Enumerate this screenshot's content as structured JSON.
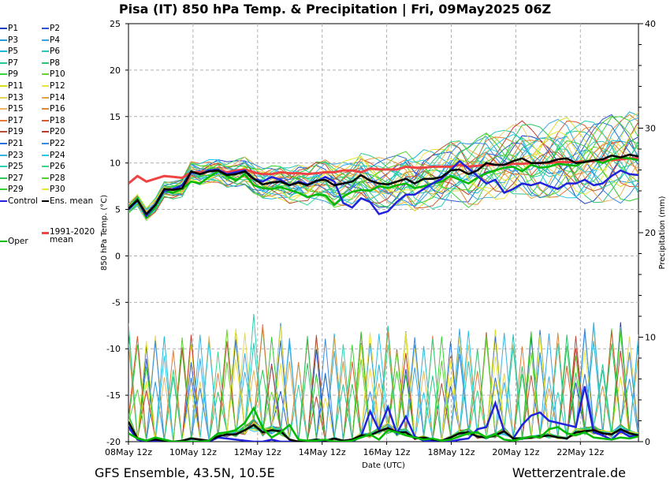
{
  "title": "Pisa  (IT)  850 hPa Temp. & Precipitation | Fri, 09May2025 06Z",
  "footer": {
    "left": "GFS Ensemble, 43.5N, 10.5E",
    "right": "Wetterzentrale.de"
  },
  "chart_data": {
    "type": "line",
    "xlabel": "Date (UTC)",
    "ylabel_left": "850 hPa Temp. (°C)",
    "ylabel_right": "Precipitation (mm)",
    "ylim_left": [
      -20,
      25
    ],
    "ylim_right": [
      0,
      40
    ],
    "yticks_left": [
      -20,
      -15,
      -10,
      -5,
      0,
      5,
      10,
      15,
      20,
      25
    ],
    "yticks_right": [
      0,
      10,
      20,
      30,
      40
    ],
    "x_ticks": [
      "08May 12z",
      "10May 12z",
      "12May 12z",
      "14May 12z",
      "16May 12z",
      "18May 12z",
      "20May 12z",
      "22May 12z"
    ],
    "x_range_days": [
      "08May 12z",
      "24May 12z"
    ],
    "grid": true,
    "legend_position": "left, outside",
    "legend": [
      {
        "name": "P1",
        "color": "#1f3fbf"
      },
      {
        "name": "P2",
        "color": "#2b55d6"
      },
      {
        "name": "P3",
        "color": "#2a9ad6"
      },
      {
        "name": "P4",
        "color": "#33a7ee"
      },
      {
        "name": "P5",
        "color": "#20b8d8"
      },
      {
        "name": "P6",
        "color": "#22c7b8"
      },
      {
        "name": "P7",
        "color": "#26c88f"
      },
      {
        "name": "P8",
        "color": "#2fc46d"
      },
      {
        "name": "P9",
        "color": "#3ad33a"
      },
      {
        "name": "P10",
        "color": "#66d62a"
      },
      {
        "name": "P11",
        "color": "#d9e024"
      },
      {
        "name": "P12",
        "color": "#ece23a"
      },
      {
        "name": "P13",
        "color": "#e6d45a"
      },
      {
        "name": "P14",
        "color": "#e7a33a"
      },
      {
        "name": "P15",
        "color": "#eab55c"
      },
      {
        "name": "P16",
        "color": "#d98a3a"
      },
      {
        "name": "P17",
        "color": "#e67a3a"
      },
      {
        "name": "P18",
        "color": "#d9582c"
      },
      {
        "name": "P19",
        "color": "#b84c3a"
      },
      {
        "name": "P20",
        "color": "#c23a2c"
      },
      {
        "name": "P21",
        "color": "#2c6fd6"
      },
      {
        "name": "P22",
        "color": "#3a8ae6"
      },
      {
        "name": "P23",
        "color": "#3ab0e0"
      },
      {
        "name": "P24",
        "color": "#20c8ea"
      },
      {
        "name": "P25",
        "color": "#2ad0b0"
      },
      {
        "name": "P26",
        "color": "#35d88a"
      },
      {
        "name": "P27",
        "color": "#2ec85a"
      },
      {
        "name": "P28",
        "color": "#5ad030"
      },
      {
        "name": "P29",
        "color": "#33cc33"
      },
      {
        "name": "P30",
        "color": "#e8e830"
      },
      {
        "name": "Control",
        "color": "#2222dd"
      },
      {
        "name": "Ens. mean",
        "color": "#000000"
      },
      {
        "name": "1991-2020 mean",
        "color": "#ee4444"
      },
      {
        "name": "Oper",
        "color": "#00bb00"
      }
    ],
    "highlighted_series": [
      {
        "name": "Control",
        "temp": [
          5,
          6,
          4.3,
          5.5,
          7,
          7.2,
          7.6,
          9,
          8.8,
          9.2,
          9.3,
          8.8,
          9,
          9.2,
          8.3,
          8,
          8.5,
          8.2,
          7.6,
          8,
          7.7,
          8,
          8.5,
          8,
          5.7,
          5.2,
          6.2,
          5.8,
          4.5,
          4.8,
          5.8,
          6.6,
          6.6,
          7.2,
          7.8,
          8.3,
          9.2,
          10.2,
          9.4,
          8.6,
          7.8,
          8.2,
          6.8,
          7.2,
          7.8,
          7.6,
          7.9,
          7.5,
          7.2,
          7.8,
          7.8,
          8.2,
          7.6,
          7.8,
          8.6,
          9.2,
          8.8,
          8.7
        ]
      },
      {
        "name": "Ens. mean",
        "temp": [
          5.1,
          6,
          4.5,
          5.5,
          7.2,
          7.1,
          7.3,
          9.1,
          8.8,
          9.1,
          9.2,
          8.7,
          8.8,
          9.1,
          8.3,
          7.7,
          7.9,
          8,
          7.6,
          7.9,
          7.6,
          8.1,
          8.2,
          7.6,
          7.8,
          8,
          8.7,
          8.1,
          7.8,
          7.7,
          8,
          8.3,
          7.8,
          8.3,
          8.3,
          8.5,
          9.2,
          9.3,
          8.8,
          9.2,
          10,
          9.8,
          9.8,
          10.2,
          10.5,
          10,
          10,
          10.1,
          10.4,
          10.5,
          10,
          10.1,
          10.3,
          10.4,
          10.8,
          10.6,
          10.9,
          10.7
        ]
      },
      {
        "name": "1991-2020 mean",
        "temp": [
          7.8,
          8.6,
          8,
          8.3,
          8.6,
          8.5,
          8.4,
          9,
          9,
          9.1,
          9.2,
          9,
          9.2,
          9.3,
          9,
          8.8,
          8.8,
          9,
          8.9,
          8.9,
          8.8,
          8.9,
          9,
          9,
          9.2,
          9.2,
          9,
          9.4,
          9.3,
          9.3,
          9.3,
          9.6,
          9.5,
          9.5,
          9.6,
          9.6,
          9.6,
          9.8,
          9.6,
          9.7,
          9.8,
          9.8,
          9.8,
          9.9,
          9.9,
          10,
          10,
          10,
          10.1,
          10.1,
          10.1,
          10.2,
          10.2,
          10.3,
          10.3,
          10.4,
          10.5,
          10.5
        ]
      },
      {
        "name": "Oper",
        "temp": [
          5,
          6.2,
          4.1,
          5.3,
          7,
          6.8,
          7.2,
          8,
          7.8,
          8.5,
          9.1,
          8.6,
          8.1,
          8.8,
          7.6,
          7.3,
          7.2,
          7.4,
          7.1,
          6.8,
          6.3,
          6.6,
          6.5,
          5.5,
          6.4,
          6.9,
          7.1,
          7,
          7.5,
          7.3,
          7.6,
          7.8,
          7.3,
          7.5,
          7.8,
          8,
          8.6,
          8.2,
          7.8,
          8.4,
          8.9,
          9.2,
          9.5,
          9.6,
          9.1,
          9.8,
          9.5,
          9.6,
          9.9,
          9.8,
          9.7,
          10.2,
          10.3,
          10,
          10.4,
          10.6,
          10.5,
          10.3
        ]
      }
    ],
    "precip_highlighted": [
      {
        "name": "Control",
        "precip": [
          1.4,
          0.2,
          0,
          0.1,
          0,
          0,
          0,
          0,
          0,
          0,
          0.4,
          0.3,
          0.2,
          0.1,
          0,
          0,
          0.2,
          0,
          0,
          0,
          0,
          0,
          0,
          0,
          0,
          0,
          0.5,
          2.9,
          1.1,
          3.3,
          0.8,
          2.4,
          0.5,
          0.1,
          0.1,
          0,
          0,
          0.2,
          0.3,
          1.2,
          1.4,
          3.7,
          1,
          0.3,
          1.6,
          2.5,
          2.8,
          2,
          1.8,
          1.6,
          1.4,
          5.3,
          0.9,
          0.6,
          0.2,
          1,
          0.5,
          0.6
        ]
      },
      {
        "name": "Ens. mean",
        "precip": [
          1.9,
          0.3,
          0.1,
          0.2,
          0.1,
          0,
          0.1,
          0.3,
          0.2,
          0.1,
          0.5,
          0.7,
          0.7,
          1.1,
          1.6,
          0.9,
          1.1,
          1,
          0.2,
          0,
          0.1,
          0.2,
          0.1,
          0.3,
          0.1,
          0.2,
          0.6,
          0.6,
          1,
          1.3,
          0.9,
          0.9,
          0.3,
          0.4,
          0.2,
          0.1,
          0.4,
          0.8,
          0.9,
          0.5,
          0.4,
          0.6,
          1,
          0.3,
          0.3,
          0.4,
          0.5,
          0.6,
          0.4,
          0.3,
          0.9,
          1,
          1.1,
          0.8,
          0.7,
          1.2,
          0.8,
          0.6
        ]
      },
      {
        "name": "Oper",
        "precip": [
          0.8,
          0.3,
          0.1,
          0.4,
          0.2,
          0,
          0,
          0,
          0,
          0.1,
          0.8,
          0.9,
          1.1,
          1.8,
          3.2,
          1.3,
          0.4,
          0.9,
          1.6,
          0.2,
          0.1,
          0.1,
          0.2,
          0,
          0,
          0.1,
          0.4,
          0.7,
          0.2,
          1.1,
          0.9,
          0.6,
          0.4,
          0.2,
          0.3,
          0.1,
          0.2,
          0.5,
          0.8,
          0.9,
          0.4,
          0.7,
          0.2,
          0.1,
          0.3,
          0.5,
          0.4,
          1.2,
          1.4,
          0.8,
          0.6,
          0.9,
          0.4,
          0.3,
          0.2,
          0.4,
          0.3,
          0.5
        ]
      }
    ]
  }
}
